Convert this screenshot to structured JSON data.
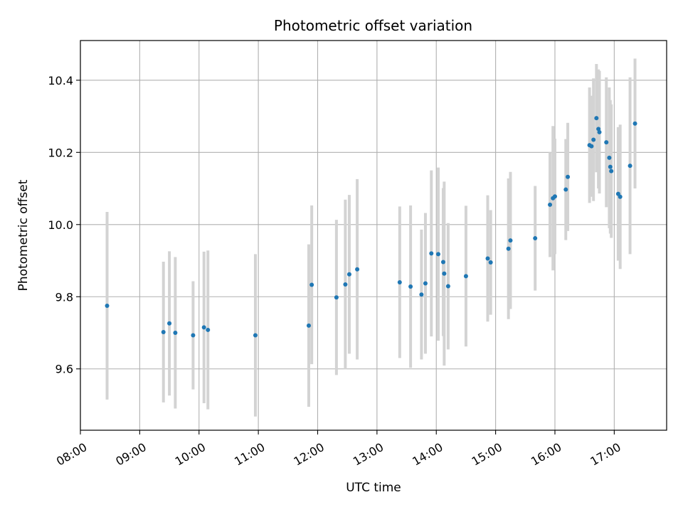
{
  "chart_data": {
    "type": "scatter",
    "title": "Photometric offset variation",
    "xlabel": "UTC time",
    "ylabel": "Photometric offset",
    "x_ticks": [
      "08:00",
      "09:00",
      "10:00",
      "11:00",
      "12:00",
      "13:00",
      "14:00",
      "15:00",
      "16:00",
      "17:00"
    ],
    "y_ticks": [
      "9.6",
      "9.8",
      "10.0",
      "10.2",
      "10.4"
    ],
    "xlim": [
      "08:00",
      "17:53"
    ],
    "ylim": [
      9.43,
      10.51
    ],
    "grid": true,
    "point_color": "#1f77b4",
    "errorbar_color": "#d3d3d3",
    "series": [
      {
        "x": [
          "08:27",
          "09:24",
          "09:30",
          "09:36",
          "09:54",
          "10:05",
          "10:09",
          "10:57",
          "11:51",
          "11:54",
          "12:19",
          "12:28",
          "12:32",
          "12:40",
          "13:23",
          "13:34",
          "13:45",
          "13:49",
          "13:55",
          "14:02",
          "14:07",
          "14:08",
          "14:12",
          "14:30",
          "14:52",
          "14:55",
          "15:13",
          "15:15",
          "15:40",
          "15:55",
          "15:58",
          "16:00",
          "16:11",
          "16:13",
          "16:35",
          "16:37",
          "16:39",
          "16:42",
          "16:44",
          "16:45",
          "16:52",
          "16:55",
          "16:56",
          "16:57",
          "17:04",
          "17:06",
          "17:16",
          "17:21"
        ],
        "y": [
          9.775,
          9.702,
          9.726,
          9.7,
          9.693,
          9.715,
          9.708,
          9.693,
          9.72,
          9.833,
          9.798,
          9.834,
          9.862,
          9.876,
          9.84,
          9.828,
          9.806,
          9.837,
          9.92,
          9.918,
          9.896,
          9.864,
          9.829,
          9.857,
          9.906,
          9.895,
          9.933,
          9.956,
          9.962,
          10.055,
          10.073,
          10.078,
          10.097,
          10.132,
          10.22,
          10.217,
          10.235,
          10.295,
          10.265,
          10.256,
          10.228,
          10.185,
          10.16,
          10.148,
          10.085,
          10.077,
          10.163,
          10.28
        ],
        "err": [
          0.26,
          0.195,
          0.2,
          0.21,
          0.15,
          0.21,
          0.22,
          0.225,
          0.225,
          0.22,
          0.215,
          0.235,
          0.22,
          0.25,
          0.21,
          0.225,
          0.18,
          0.195,
          0.23,
          0.24,
          0.205,
          0.255,
          0.175,
          0.195,
          0.175,
          0.145,
          0.195,
          0.19,
          0.145,
          0.145,
          0.2,
          0.16,
          0.14,
          0.15,
          0.16,
          0.14,
          0.17,
          0.15,
          0.165,
          0.17,
          0.18,
          0.195,
          0.185,
          0.185,
          0.185,
          0.2,
          0.245,
          0.18
        ]
      }
    ]
  }
}
